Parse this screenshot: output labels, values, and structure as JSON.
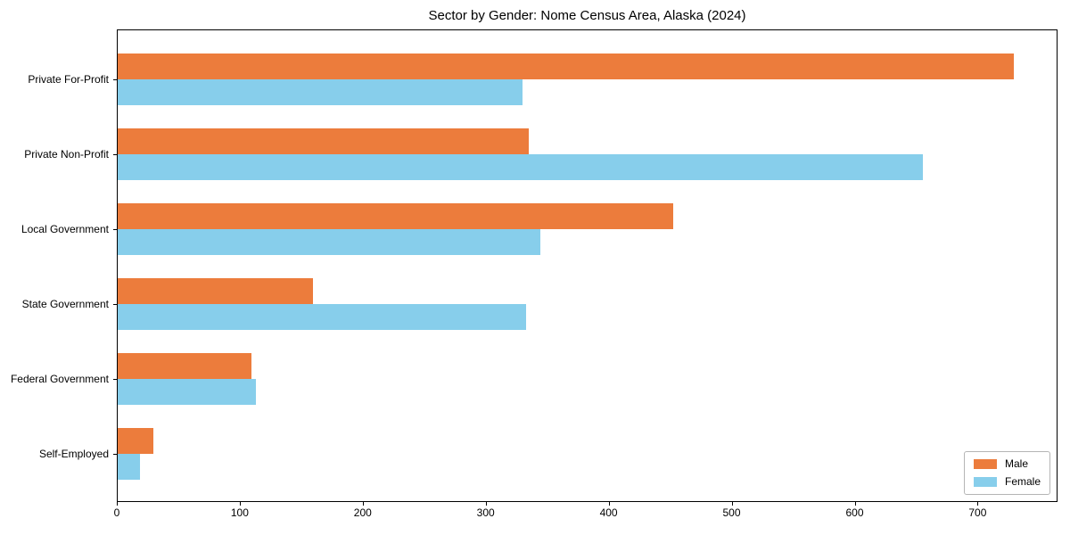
{
  "title": "Sector by Gender: Nome Census Area, Alaska (2024)",
  "chart_data": {
    "type": "bar",
    "orientation": "horizontal",
    "grouped": true,
    "title": "Sector by Gender: Nome Census Area, Alaska (2024)",
    "categories": [
      "Private For-Profit",
      "Private Non-Profit",
      "Local Government",
      "State Government",
      "Federal Government",
      "Self-Employed"
    ],
    "series": [
      {
        "name": "Male",
        "color": "#ec7c3c",
        "values": [
          729,
          334,
          452,
          159,
          109,
          29
        ]
      },
      {
        "name": "Female",
        "color": "#87ceeb",
        "values": [
          329,
          655,
          344,
          332,
          112,
          18
        ]
      }
    ],
    "xlabel": "",
    "ylabel": "",
    "xlim": [
      0,
      765
    ],
    "xticks": [
      0,
      100,
      200,
      300,
      400,
      500,
      600,
      700
    ],
    "grid": false,
    "legend_position": "lower right"
  }
}
